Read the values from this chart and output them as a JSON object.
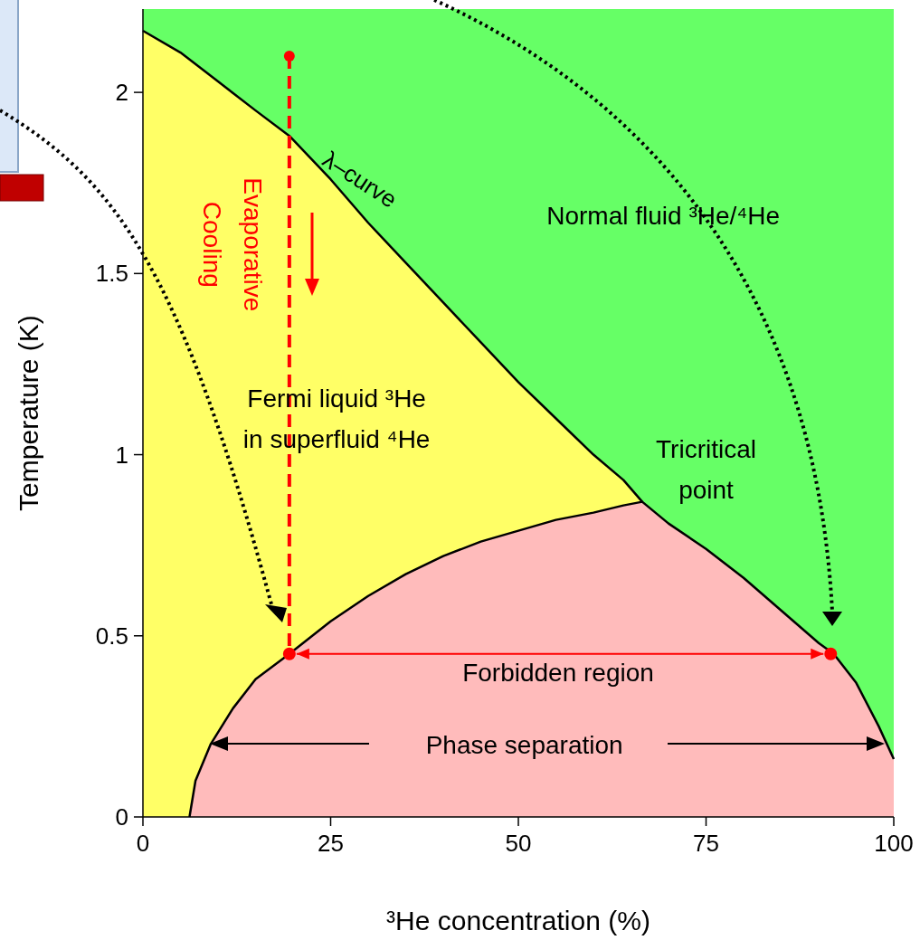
{
  "chart_data": {
    "type": "area",
    "xlabel": "³He concentration (%)",
    "ylabel": "Temperature (K)",
    "xlim": [
      0,
      100
    ],
    "ylim": [
      0,
      2.23
    ],
    "xticks": [
      0,
      25,
      50,
      75,
      100
    ],
    "yticks": [
      0,
      0.5,
      1.0,
      1.5,
      2.0
    ],
    "bands": [
      {
        "axis": "y",
        "from": 0,
        "to": 2.23,
        "color": "#66ff66"
      }
    ],
    "series": [
      {
        "color": "#ffff66",
        "x": [
          0,
          5,
          10,
          15,
          19.5,
          25,
          30,
          35,
          40,
          45,
          50,
          55,
          60,
          64,
          66.5
        ],
        "values": [
          2.17,
          2.11,
          2.03,
          1.95,
          1.88,
          1.76,
          1.64,
          1.53,
          1.42,
          1.31,
          1.2,
          1.1,
          1.0,
          0.93,
          0.87
        ]
      },
      {
        "color": "#ffbbbb",
        "x": [
          6.2,
          7,
          9,
          12,
          15,
          19.5,
          25,
          30,
          35,
          40,
          45,
          50,
          55,
          60,
          64,
          66.5,
          70,
          75,
          80,
          85,
          90,
          92,
          95,
          98,
          100
        ],
        "values": [
          0,
          0.1,
          0.2,
          0.3,
          0.38,
          0.45,
          0.54,
          0.61,
          0.67,
          0.72,
          0.76,
          0.79,
          0.82,
          0.84,
          0.86,
          0.87,
          0.81,
          0.74,
          0.66,
          0.57,
          0.48,
          0.45,
          0.37,
          0.25,
          0.16
        ]
      },
      {
        "type": "line",
        "color": "#ff0000",
        "line_style": "dashed",
        "marker": "circle",
        "x": [
          19.5,
          19.5
        ],
        "values": [
          2.1,
          0.45
        ]
      },
      {
        "type": "scatter",
        "color": "#ff0000",
        "marker": "circle",
        "x": [
          19.5,
          91.6
        ],
        "values": [
          0.45,
          0.45
        ]
      }
    ],
    "annotations": [
      "λ–curve",
      "Normal fluid ³He/⁴He",
      "Fermi liquid ³He\nin superfluid ⁴He",
      "Tricritical\npoint",
      "Forbidden region",
      "Phase separation",
      "Evaporative\nCooling"
    ]
  }
}
